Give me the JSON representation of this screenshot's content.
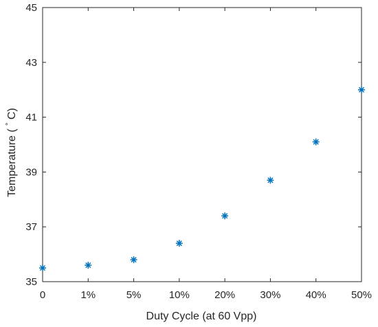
{
  "chart_data": {
    "type": "scatter",
    "categories": [
      "0",
      "1%",
      "5%",
      "10%",
      "20%",
      "30%",
      "40%",
      "50%"
    ],
    "values": [
      35.5,
      35.6,
      35.8,
      36.4,
      37.4,
      38.7,
      40.1,
      42.0
    ],
    "marker": "asterisk",
    "marker_color": "#0072bd",
    "xlabel": "Duty Cycle (at 60 Vpp)",
    "ylabel_main": "Temperature (",
    "ylabel_degree": "°",
    "ylabel_unit": "C)",
    "ylim": [
      35,
      45
    ],
    "yticks": [
      "35",
      "37",
      "39",
      "41",
      "43",
      "45"
    ],
    "grid": false,
    "box": true
  }
}
